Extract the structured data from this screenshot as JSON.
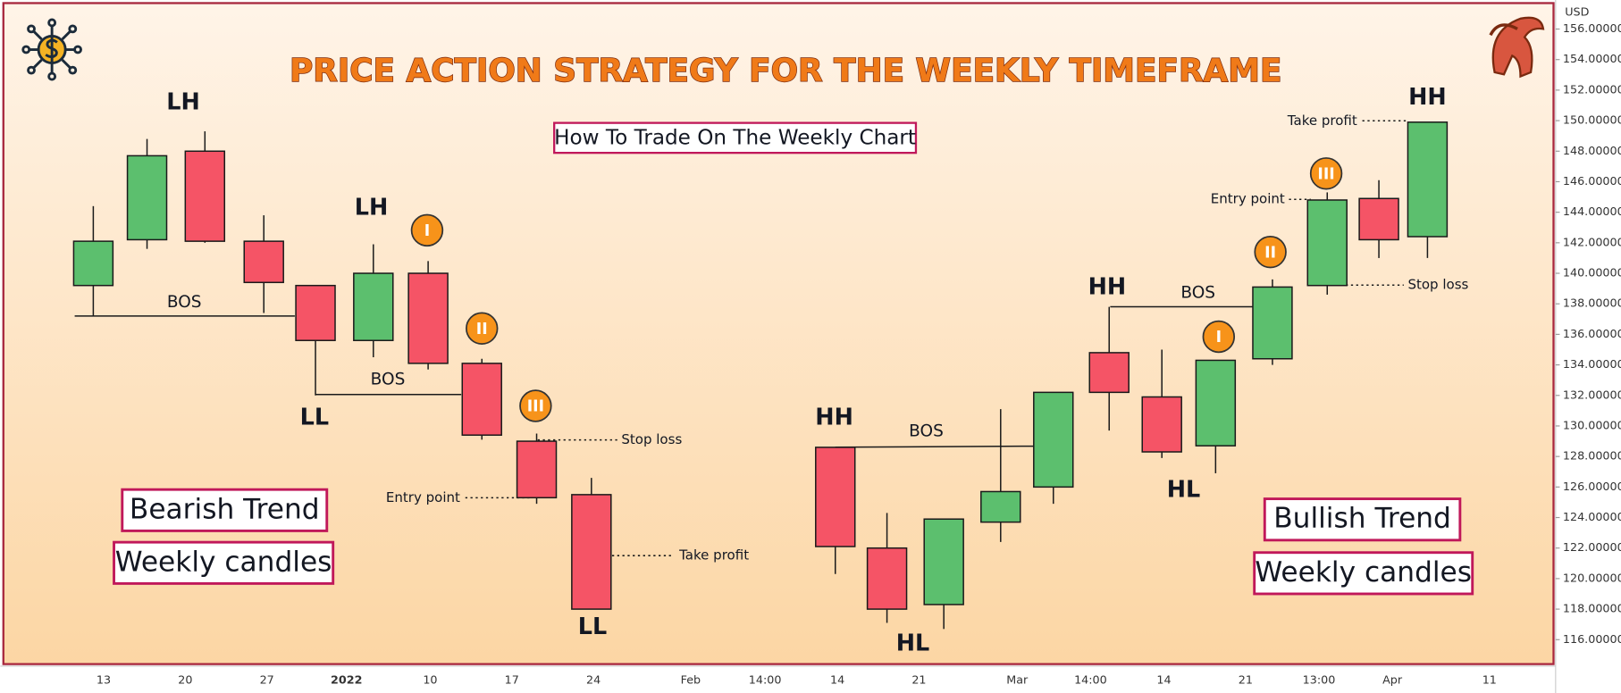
{
  "chart_data": {
    "type": "candlestick",
    "title": "PRICE ACTION STRATEGY FOR THE WEEKLY TIMEFRAME",
    "subtitle": "How To Trade On The Weekly Chart",
    "currency": "USD",
    "up_color": "#5cbf6e",
    "down_color": "#f55466",
    "series": [
      {
        "open": [
          139.2,
          142.2,
          148.0,
          142.1,
          139.2,
          135.6,
          140.0,
          134.1,
          129.0,
          125.5,
          128.6,
          122.0,
          118.3,
          123.7,
          126.0,
          134.8,
          131.9,
          128.7,
          134.4,
          139.2,
          144.9,
          142.4
        ],
        "high": [
          144.4,
          148.8,
          149.3,
          143.8,
          139.2,
          141.9,
          140.8,
          134.4,
          129.5,
          126.6,
          128.6,
          124.3,
          123.9,
          131.1,
          132.2,
          137.8,
          135.0,
          134.3,
          139.6,
          145.3,
          146.1,
          149.9
        ],
        "low": [
          137.2,
          141.6,
          142.0,
          137.4,
          132.0,
          134.5,
          133.7,
          129.1,
          124.9,
          118.0,
          120.3,
          117.1,
          116.7,
          122.4,
          124.9,
          129.7,
          127.9,
          126.9,
          134.0,
          138.6,
          141.0,
          141.0
        ],
        "close": [
          142.1,
          147.7,
          142.1,
          139.4,
          135.6,
          140.0,
          134.1,
          129.4,
          125.3,
          118.0,
          122.1,
          118.0,
          123.9,
          125.7,
          132.2,
          132.2,
          128.3,
          134.3,
          139.1,
          144.8,
          142.2,
          149.9
        ]
      }
    ],
    "ylim": [
      114.4,
      157.7
    ],
    "yticks": [
      {
        "value": 116,
        "label": "116.00000"
      },
      {
        "value": 118,
        "label": "118.00000"
      },
      {
        "value": 120,
        "label": "120.00000"
      },
      {
        "value": 122,
        "label": "122.00000"
      },
      {
        "value": 124,
        "label": "124.00000"
      },
      {
        "value": 126,
        "label": "126.00000"
      },
      {
        "value": 128,
        "label": "128.00000"
      },
      {
        "value": 130,
        "label": "130.00000"
      },
      {
        "value": 132,
        "label": "132.00000"
      },
      {
        "value": 134,
        "label": "134.00000"
      },
      {
        "value": 136,
        "label": "136.00000"
      },
      {
        "value": 138,
        "label": "138.00000"
      },
      {
        "value": 140,
        "label": "140.00000"
      },
      {
        "value": 142,
        "label": "142.00000"
      },
      {
        "value": 144,
        "label": "144.00000"
      },
      {
        "value": 146,
        "label": "146.00000"
      },
      {
        "value": 148,
        "label": "148.00000"
      },
      {
        "value": 150,
        "label": "150.00000"
      },
      {
        "value": 152,
        "label": "152.00000"
      },
      {
        "value": 154,
        "label": "154.00000"
      },
      {
        "value": 156,
        "label": "156.00000"
      }
    ],
    "xtick_labels": [
      "13",
      "20",
      "27",
      "2022",
      "10",
      "17",
      "24",
      "Feb",
      "14:00",
      "14",
      "21",
      "Mar",
      "14:00",
      "14",
      "21",
      "13:00",
      "Apr",
      "11"
    ],
    "annotations": [
      "LH",
      "LH",
      "BOS",
      "BOS",
      "LL",
      "LL",
      "I",
      "II",
      "III",
      "Stop loss",
      "Entry point",
      "Take profit",
      "Bearish Trend",
      "Weekly candles",
      "HH",
      "BOS",
      "HL",
      "HH",
      "BOS",
      "HL",
      "I",
      "II",
      "III",
      "Entry point",
      "Stop loss",
      "Take profit",
      "HH",
      "Bullish Trend",
      "Weekly candles"
    ]
  }
}
